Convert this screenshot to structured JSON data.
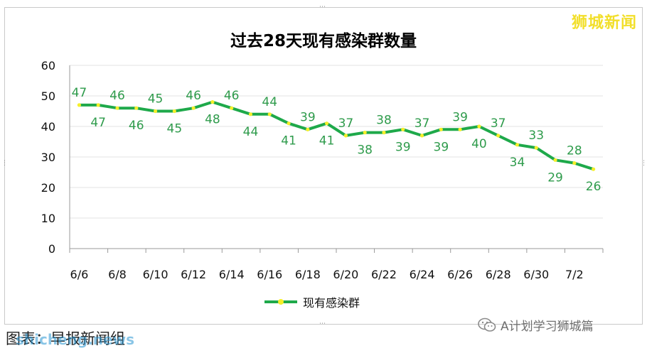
{
  "brand": "狮城新闻",
  "caption": "图表：早报新闻组",
  "url_watermark": "shicheng.news",
  "watermark": {
    "icon": "wechat-icon",
    "text": "A计划学习狮城篇"
  },
  "colors": {
    "line": "#1ea94a",
    "marker": "#f5ef2a",
    "label": "#2e9b4b",
    "grid": "#e3e3e3",
    "axis": "#9a9a9a"
  },
  "chart_data": {
    "type": "line",
    "title": "过去28天现有感染群数量",
    "xlabel": "",
    "ylabel": "",
    "ylim": [
      0,
      60
    ],
    "yticks": [
      0,
      10,
      20,
      30,
      40,
      50,
      60
    ],
    "grid": true,
    "legend_position": "bottom",
    "x": [
      "6/6",
      "6/7",
      "6/8",
      "6/9",
      "6/10",
      "6/11",
      "6/12",
      "6/13",
      "6/14",
      "6/15",
      "6/16",
      "6/17",
      "6/18",
      "6/19",
      "6/20",
      "6/21",
      "6/22",
      "6/23",
      "6/24",
      "6/25",
      "6/26",
      "6/27",
      "6/28",
      "6/29",
      "6/30",
      "7/1",
      "7/2",
      "7/3"
    ],
    "xtick_labels": [
      "6/6",
      "",
      "6/8",
      "",
      "6/10",
      "",
      "6/12",
      "",
      "6/14",
      "",
      "6/16",
      "",
      "6/18",
      "",
      "6/20",
      "",
      "6/22",
      "",
      "6/24",
      "",
      "6/26",
      "",
      "6/28",
      "",
      "6/30",
      "",
      "7/2",
      ""
    ],
    "series": [
      {
        "name": "现有感染群",
        "values": [
          47,
          47,
          46,
          46,
          45,
          45,
          46,
          48,
          46,
          44,
          44,
          41,
          39,
          41,
          37,
          38,
          38,
          39,
          37,
          39,
          39,
          40,
          37,
          34,
          33,
          29,
          28,
          26
        ]
      }
    ]
  }
}
